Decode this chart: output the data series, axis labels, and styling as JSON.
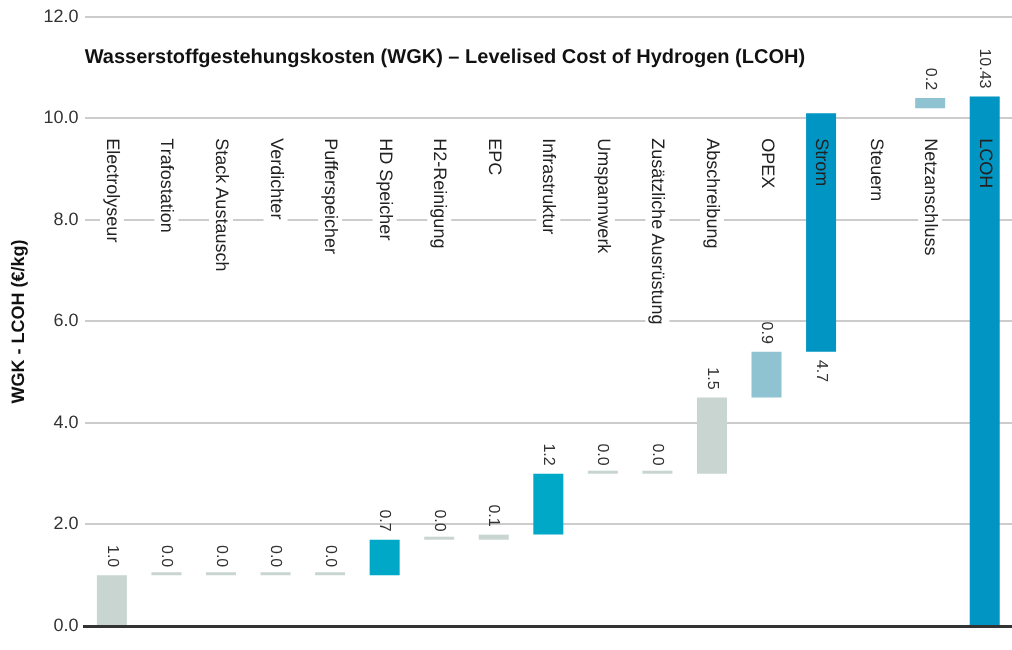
{
  "chart_data": {
    "type": "bar",
    "title": "Wasserstoffgestehungskosten (WGK) – Levelised Cost of Hydrogen (LCOH)",
    "ylabel": "WGK - LCOH (€/kg)",
    "categories": [
      "Electrolyseur",
      "Trafostation",
      "Stack Austausch",
      "Verdichter",
      "Pufferspeicher",
      "HD Speicher",
      "H2-Reinigung",
      "EPC",
      "Infrastruktur",
      "Umspannwerk",
      "Zusätzliche Ausrüstung",
      "Abschreibung",
      "OPEX",
      "Strom",
      "Steuern",
      "Netzanschluss",
      "LCOH"
    ],
    "values": [
      1.0,
      0.0,
      0.0,
      0.0,
      0.0,
      0.7,
      0.0,
      0.1,
      1.2,
      0.0,
      0.0,
      1.5,
      0.9,
      4.7,
      null,
      0.2,
      10.43
    ],
    "base": [
      0,
      1.0,
      1.0,
      1.0,
      1.0,
      1.0,
      1.7,
      1.7,
      1.8,
      3.0,
      3.0,
      3.0,
      4.5,
      5.4,
      null,
      10.2,
      0
    ],
    "colors": [
      "#c9d5d1",
      "#c9d5d1",
      "#c9d5d1",
      "#c9d5d1",
      "#c9d5d1",
      "#00a8c8",
      "#c9d5d1",
      "#c9d5d1",
      "#00a8c8",
      "#c9d5d1",
      "#c9d5d1",
      "#c9d5d1",
      "#8fc3d1",
      "#0095c2",
      "#c9d5d1",
      "#8fc3d1",
      "#0095c2"
    ],
    "value_labels": [
      "1.0",
      "0.0",
      "0.0",
      "0.0",
      "0.0",
      "0.7",
      "0.0",
      "0.1",
      "1.2",
      "0.0",
      "0.0",
      "1.5",
      "0.9",
      "4.7",
      null,
      "0.2",
      "10.43"
    ],
    "ylim": [
      0,
      12
    ],
    "yticks": [
      {
        "value": 0,
        "label": "0.0"
      },
      {
        "value": 2,
        "label": "2.0"
      },
      {
        "value": 4,
        "label": "4.0"
      },
      {
        "value": 6,
        "label": "6.0"
      },
      {
        "value": 8,
        "label": "8.0"
      },
      {
        "value": 10,
        "label": "10.0"
      },
      {
        "value": 12,
        "label": "12.0"
      }
    ],
    "grid": "y",
    "legend": false,
    "tick_labels": "y"
  }
}
